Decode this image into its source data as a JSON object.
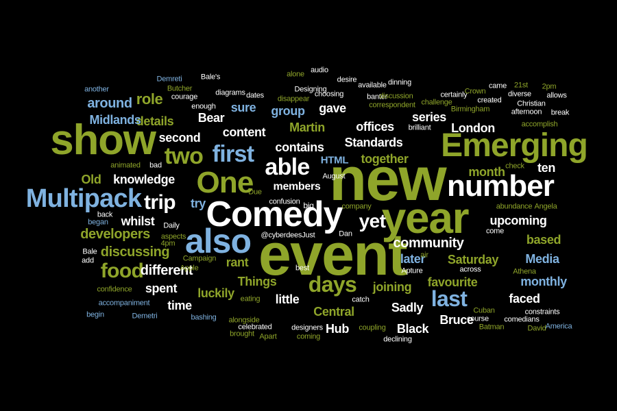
{
  "palette": {
    "background": "#000000",
    "green": "#8fa52a",
    "lime": "#a8c832",
    "blue": "#7fb2e0",
    "white": "#ffffff"
  },
  "words": [
    {
      "text": "new",
      "color": "green"
    },
    {
      "text": "event",
      "color": "green"
    },
    {
      "text": "year",
      "color": "green"
    },
    {
      "text": "Comedy",
      "color": "white"
    },
    {
      "text": "show",
      "color": "green"
    },
    {
      "text": "Emerging",
      "color": "green"
    },
    {
      "text": "number",
      "color": "white"
    },
    {
      "text": "also",
      "color": "blue"
    },
    {
      "text": "One",
      "color": "green"
    },
    {
      "text": "Multipack",
      "color": "blue"
    },
    {
      "text": "first",
      "color": "blue"
    },
    {
      "text": "two",
      "color": "green"
    },
    {
      "text": "able",
      "color": "white"
    },
    {
      "text": "yet",
      "color": "white"
    },
    {
      "text": "days",
      "color": "green"
    },
    {
      "text": "last",
      "color": "blue"
    },
    {
      "text": "food",
      "color": "green"
    },
    {
      "text": "trip",
      "color": "white"
    },
    {
      "text": "community",
      "color": "white"
    },
    {
      "text": "upcoming",
      "color": "white"
    },
    {
      "text": "London",
      "color": "white"
    },
    {
      "text": "Martin",
      "color": "green"
    },
    {
      "text": "Standards",
      "color": "white"
    },
    {
      "text": "offices",
      "color": "white"
    },
    {
      "text": "series",
      "color": "white"
    },
    {
      "text": "contains",
      "color": "white"
    },
    {
      "text": "content",
      "color": "white"
    },
    {
      "text": "second",
      "color": "white"
    },
    {
      "text": "sure",
      "color": "blue"
    },
    {
      "text": "group",
      "color": "blue"
    },
    {
      "text": "gave",
      "color": "white"
    },
    {
      "text": "Bear",
      "color": "white"
    },
    {
      "text": "details",
      "color": "green"
    },
    {
      "text": "Midlands",
      "color": "blue"
    },
    {
      "text": "around",
      "color": "blue"
    },
    {
      "text": "role",
      "color": "green"
    },
    {
      "text": "knowledge",
      "color": "white"
    },
    {
      "text": "Old",
      "color": "green"
    },
    {
      "text": "try",
      "color": "blue"
    },
    {
      "text": "HTML",
      "color": "blue"
    },
    {
      "text": "together",
      "color": "green"
    },
    {
      "text": "month",
      "color": "green"
    },
    {
      "text": "ten",
      "color": "white"
    },
    {
      "text": "members",
      "color": "white"
    },
    {
      "text": "whilst",
      "color": "white"
    },
    {
      "text": "developers",
      "color": "green"
    },
    {
      "text": "discussing",
      "color": "green"
    },
    {
      "text": "different",
      "color": "white"
    },
    {
      "text": "rant",
      "color": "green"
    },
    {
      "text": "spent",
      "color": "white"
    },
    {
      "text": "luckily",
      "color": "green"
    },
    {
      "text": "time",
      "color": "white"
    },
    {
      "text": "Things",
      "color": "green"
    },
    {
      "text": "little",
      "color": "white"
    },
    {
      "text": "joining",
      "color": "green"
    },
    {
      "text": "favourite",
      "color": "green"
    },
    {
      "text": "monthly",
      "color": "blue"
    },
    {
      "text": "Media",
      "color": "blue"
    },
    {
      "text": "Saturday",
      "color": "green"
    },
    {
      "text": "based",
      "color": "green"
    },
    {
      "text": "later",
      "color": "blue"
    },
    {
      "text": "Sadly",
      "color": "white"
    },
    {
      "text": "faced",
      "color": "white"
    },
    {
      "text": "Bruce",
      "color": "white"
    },
    {
      "text": "Central",
      "color": "green"
    },
    {
      "text": "Black",
      "color": "white"
    },
    {
      "text": "Hub",
      "color": "white"
    },
    {
      "text": "Demreti",
      "color": "blue"
    },
    {
      "text": "Butcher",
      "color": "green"
    },
    {
      "text": "Bale's",
      "color": "white"
    },
    {
      "text": "alone",
      "color": "green"
    },
    {
      "text": "audio",
      "color": "white"
    },
    {
      "text": "dinning",
      "color": "white"
    },
    {
      "text": "desire",
      "color": "white"
    },
    {
      "text": "another",
      "color": "blue"
    },
    {
      "text": "courage",
      "color": "white"
    },
    {
      "text": "diagrams",
      "color": "white"
    },
    {
      "text": "dates",
      "color": "white"
    },
    {
      "text": "disappear",
      "color": "green"
    },
    {
      "text": "Designing",
      "color": "white"
    },
    {
      "text": "choosing",
      "color": "white"
    },
    {
      "text": "available",
      "color": "white"
    },
    {
      "text": "banter",
      "color": "white"
    },
    {
      "text": "discussion",
      "color": "green"
    },
    {
      "text": "correspondent",
      "color": "green"
    },
    {
      "text": "challenge",
      "color": "green"
    },
    {
      "text": "certainly",
      "color": "white"
    },
    {
      "text": "Crown",
      "color": "green"
    },
    {
      "text": "came",
      "color": "white"
    },
    {
      "text": "21st",
      "color": "green"
    },
    {
      "text": "2pm",
      "color": "green"
    },
    {
      "text": "diverse",
      "color": "white"
    },
    {
      "text": "allows",
      "color": "white"
    },
    {
      "text": "created",
      "color": "white"
    },
    {
      "text": "Christian",
      "color": "white"
    },
    {
      "text": "Birmingham",
      "color": "green"
    },
    {
      "text": "afternoon",
      "color": "white"
    },
    {
      "text": "break",
      "color": "white"
    },
    {
      "text": "enough",
      "color": "white"
    },
    {
      "text": "brilliant",
      "color": "white"
    },
    {
      "text": "accomplish",
      "color": "green"
    },
    {
      "text": "animated",
      "color": "green"
    },
    {
      "text": "bad",
      "color": "white"
    },
    {
      "text": "August",
      "color": "white"
    },
    {
      "text": "check",
      "color": "green"
    },
    {
      "text": "Due",
      "color": "green"
    },
    {
      "text": "confusion",
      "color": "white"
    },
    {
      "text": "company",
      "color": "green"
    },
    {
      "text": "abundance",
      "color": "green"
    },
    {
      "text": "Angela",
      "color": "green"
    },
    {
      "text": "back",
      "color": "white"
    },
    {
      "text": "began",
      "color": "blue"
    },
    {
      "text": "Daily",
      "color": "white"
    },
    {
      "text": "aspects",
      "color": "green"
    },
    {
      "text": "Dan",
      "color": "white"
    },
    {
      "text": "come",
      "color": "white"
    },
    {
      "text": "@cyberdeesJust",
      "color": "white"
    },
    {
      "text": "4pm",
      "color": "green"
    },
    {
      "text": "air",
      "color": "green"
    },
    {
      "text": "Bale",
      "color": "white"
    },
    {
      "text": "add",
      "color": "white"
    },
    {
      "text": "Campaign",
      "color": "green"
    },
    {
      "text": "Apple",
      "color": "green"
    },
    {
      "text": "best",
      "color": "white"
    },
    {
      "text": "Apture",
      "color": "white"
    },
    {
      "text": "across",
      "color": "white"
    },
    {
      "text": "Athena",
      "color": "green"
    },
    {
      "text": "confidence",
      "color": "green"
    },
    {
      "text": "eating",
      "color": "green"
    },
    {
      "text": "catch",
      "color": "white"
    },
    {
      "text": "accompaniment",
      "color": "blue"
    },
    {
      "text": "Cuban",
      "color": "green"
    },
    {
      "text": "course",
      "color": "white"
    },
    {
      "text": "comedians",
      "color": "white"
    },
    {
      "text": "constraints",
      "color": "white"
    },
    {
      "text": "begin",
      "color": "blue"
    },
    {
      "text": "Demetri",
      "color": "blue"
    },
    {
      "text": "bashing",
      "color": "blue"
    },
    {
      "text": "celebrated",
      "color": "white"
    },
    {
      "text": "designers",
      "color": "white"
    },
    {
      "text": "alongside",
      "color": "green"
    },
    {
      "text": "brought",
      "color": "green"
    },
    {
      "text": "Apart",
      "color": "green"
    },
    {
      "text": "coming",
      "color": "green"
    },
    {
      "text": "coupling",
      "color": "green"
    },
    {
      "text": "declining",
      "color": "white"
    },
    {
      "text": "Batman",
      "color": "green"
    },
    {
      "text": "David",
      "color": "green"
    },
    {
      "text": "America",
      "color": "blue"
    },
    {
      "text": "big",
      "color": "white"
    }
  ]
}
